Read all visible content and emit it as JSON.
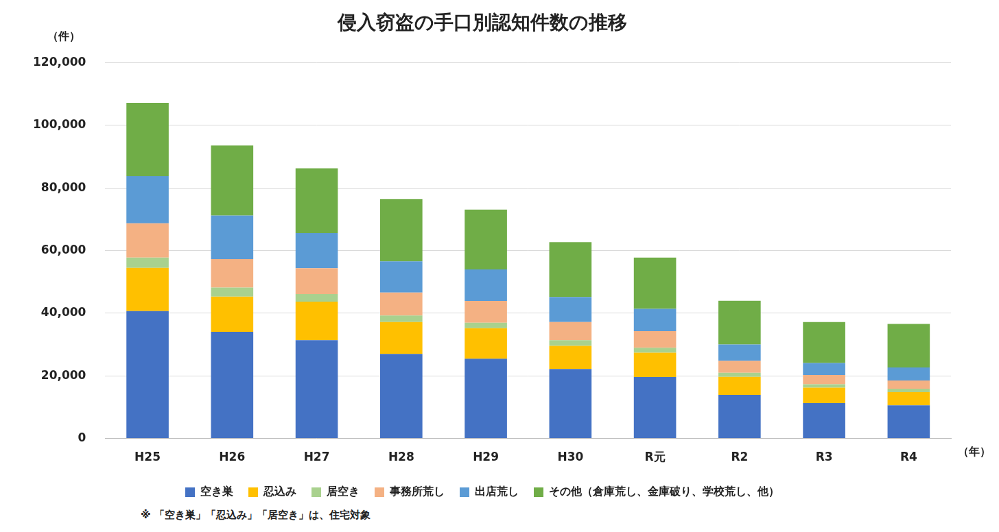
{
  "chart_data": {
    "type": "bar",
    "title": "侵入窃盗の手口別認知件数の推移",
    "y_label": "（件）",
    "x_label": "（年）",
    "annotations": [
      "※ 「空き巣」「忍込み」「居空き」は、住宅対象"
    ],
    "categories": [
      "H25",
      "H26",
      "H27",
      "H28",
      "H29",
      "H30",
      "R元",
      "R2",
      "R3",
      "R4"
    ],
    "series": [
      {
        "name": "空き巣",
        "color": "#4472c4",
        "values": [
          40700,
          34100,
          31400,
          27000,
          25500,
          22200,
          19600,
          13900,
          11300,
          10600
        ]
      },
      {
        "name": "忍込み",
        "color": "#ffc000",
        "values": [
          13800,
          11200,
          12300,
          10200,
          9700,
          7400,
          7800,
          5800,
          4900,
          4200
        ]
      },
      {
        "name": "居空き",
        "color": "#a9d18e",
        "values": [
          3300,
          2900,
          2400,
          2100,
          1800,
          1800,
          1600,
          1300,
          1100,
          1100
        ]
      },
      {
        "name": "事務所荒し",
        "color": "#f4b183",
        "values": [
          10900,
          9100,
          8300,
          7300,
          6900,
          5800,
          5300,
          3800,
          3000,
          2600
        ]
      },
      {
        "name": "出店荒し",
        "color": "#5b9bd5",
        "values": [
          15100,
          13900,
          11200,
          10000,
          10100,
          8000,
          7100,
          5200,
          3800,
          4200
        ]
      },
      {
        "name": "その他（倉庫荒し、金庫破り、学校荒し、他）",
        "color": "#70ad47",
        "values": [
          23400,
          22400,
          20700,
          19900,
          19100,
          17500,
          16400,
          14000,
          13100,
          13900
        ]
      }
    ],
    "stacked": true,
    "legend": "bottom",
    "grid": true,
    "ylim": [
      0,
      120000
    ],
    "yticks": [
      0,
      {
        "value": 20000,
        "label": "20,000"
      },
      {
        "value": 40000,
        "label": "40,000"
      },
      {
        "value": 60000,
        "label": "60,000"
      },
      {
        "value": 80000,
        "label": "80,000"
      },
      {
        "value": 100000,
        "label": "100,000"
      },
      {
        "value": 120000,
        "label": "120,000"
      }
    ]
  }
}
